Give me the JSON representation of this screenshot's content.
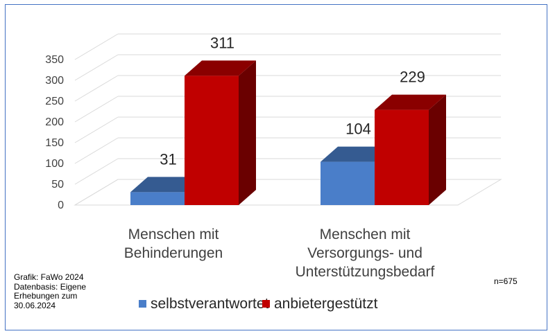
{
  "chart_data": {
    "type": "bar",
    "categories": [
      [
        "Menschen mit",
        "Behinderungen"
      ],
      [
        "Menschen mit",
        "Versorgungs- und",
        "Unterstützungsbedarf"
      ]
    ],
    "series": [
      {
        "name": "selbstverantwortet",
        "values": [
          31,
          104
        ],
        "color": "#4a7ec9"
      },
      {
        "name": "anbietergestützt",
        "values": [
          311,
          229
        ],
        "color": "#c00000"
      }
    ],
    "ylim": [
      0,
      350
    ],
    "yticks": [
      0,
      50,
      100,
      150,
      200,
      250,
      300,
      350
    ],
    "grid": true,
    "style": "3d-column",
    "legend_position": "bottom"
  },
  "source_note": "Grafik: FaWo 2024\nDatenbasis: Eigene\nErhebungen zum\n30.06.2024",
  "n_note": "n=675"
}
